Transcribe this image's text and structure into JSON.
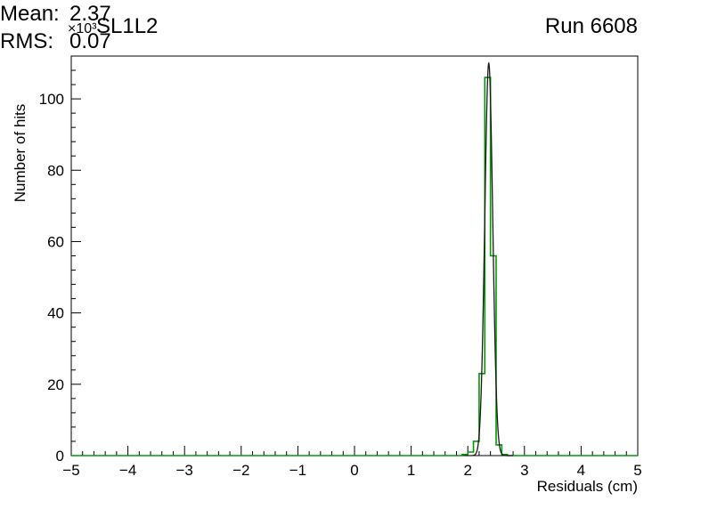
{
  "header": {
    "exponent_label": "×10³",
    "title": "SL1L2",
    "run_label": "Run 6608"
  },
  "stats": {
    "lines": [
      {
        "label": "Mean:",
        "value": "2.37"
      },
      {
        "label": "RMS:",
        "value": "0.07"
      }
    ]
  },
  "chart_data": {
    "type": "bar",
    "title": "SL1L2",
    "subtitle": "Run 6608",
    "annotations": [
      "Mean: 2.37",
      "RMS: 0.07"
    ],
    "xlabel": "Residuals (cm)",
    "ylabel": "Number of hits",
    "y_axis_multiplier": "×10³",
    "xlim": [
      -5,
      5
    ],
    "ylim": [
      0,
      112
    ],
    "x_major_ticks": [
      -5,
      -4,
      -3,
      -2,
      -1,
      0,
      1,
      2,
      3,
      4,
      5
    ],
    "y_major_ticks": [
      0,
      20,
      40,
      60,
      80,
      100
    ],
    "x_minor_step": 0.2,
    "y_minor_step": 4,
    "grid": false,
    "legend": false,
    "histogram": {
      "series_name": "residuals-histogram",
      "color": "#009a00",
      "bin_edges": [
        1.9,
        2.0,
        2.1,
        2.2,
        2.3,
        2.4,
        2.5,
        2.6,
        2.7
      ],
      "counts_thousands": [
        0.3,
        1,
        4,
        23,
        106,
        56,
        3,
        0.3
      ]
    },
    "fit": {
      "series_name": "gaussian-fit",
      "model": "gaussian",
      "mean": 2.37,
      "sigma": 0.07,
      "amplitude_thousands": 110,
      "color": "#1a1a1a",
      "range": [
        1.95,
        2.8
      ]
    }
  },
  "frame": {
    "color": "#000000",
    "background": "#ffffff"
  }
}
